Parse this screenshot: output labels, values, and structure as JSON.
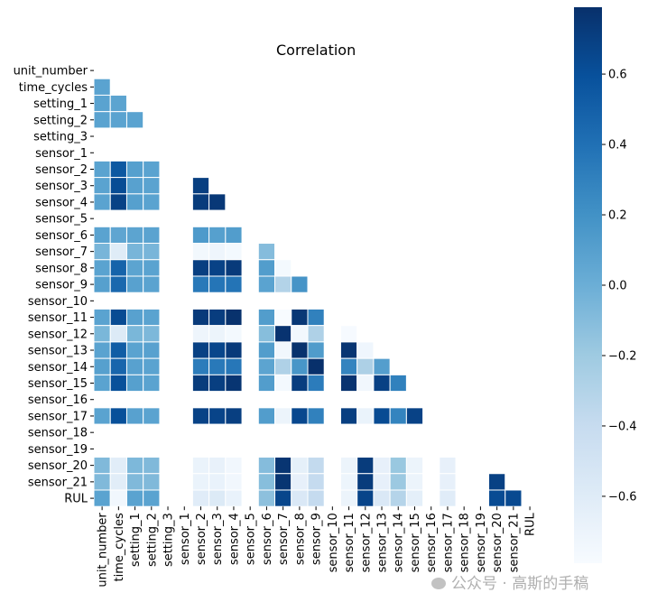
{
  "chart_data": {
    "type": "heatmap",
    "title": "Correlation",
    "labels": [
      "unit_number",
      "time_cycles",
      "setting_1",
      "setting_2",
      "setting_3",
      "sensor_1",
      "sensor_2",
      "sensor_3",
      "sensor_4",
      "sensor_5",
      "sensor_6",
      "sensor_7",
      "sensor_8",
      "sensor_9",
      "sensor_10",
      "sensor_11",
      "sensor_12",
      "sensor_13",
      "sensor_14",
      "sensor_15",
      "sensor_16",
      "sensor_17",
      "sensor_18",
      "sensor_19",
      "sensor_20",
      "sensor_21",
      "RUL"
    ],
    "mask": "upper-triangle",
    "constant_columns": [
      "setting_3",
      "sensor_1",
      "sensor_5",
      "sensor_10",
      "sensor_16",
      "sensor_18",
      "sensor_19"
    ],
    "lower_triangle_rows": [
      [],
      [
        0.08
      ],
      [
        0.08,
        0.07
      ],
      [
        0.08,
        0.08,
        0.08
      ],
      [],
      [],
      [
        0.08,
        0.55,
        0.1,
        0.08
      ],
      [
        0.08,
        0.62,
        0.09,
        0.08,
        null,
        null,
        0.7
      ],
      [
        0.08,
        0.68,
        0.1,
        0.08,
        null,
        null,
        0.72,
        0.74
      ],
      [],
      [
        0.08,
        0.06,
        0.07,
        0.08,
        null,
        null,
        0.14,
        0.1,
        0.12
      ],
      [
        -0.05,
        -0.6,
        -0.05,
        -0.05,
        null,
        null,
        -0.75,
        -0.72,
        -0.76,
        null,
        -0.1
      ],
      [
        0.08,
        0.48,
        0.07,
        0.08,
        null,
        null,
        0.7,
        0.68,
        0.73,
        null,
        0.12,
        -0.76
      ],
      [
        0.1,
        0.45,
        0.09,
        0.08,
        null,
        null,
        0.35,
        0.37,
        0.38,
        null,
        0.08,
        -0.3,
        0.18
      ],
      [],
      [
        0.08,
        0.63,
        0.09,
        0.08,
        null,
        null,
        0.73,
        0.71,
        0.78,
        null,
        0.12,
        -0.79,
        0.75,
        0.3
      ],
      [
        -0.06,
        -0.58,
        -0.06,
        -0.07,
        null,
        null,
        -0.72,
        -0.7,
        -0.76,
        null,
        -0.11,
        0.77,
        -0.75,
        -0.28,
        null,
        -0.78
      ],
      [
        0.08,
        0.52,
        0.08,
        0.09,
        null,
        null,
        0.69,
        0.66,
        0.73,
        null,
        0.12,
        -0.74,
        0.78,
        0.13,
        null,
        0.76,
        -0.73
      ],
      [
        0.1,
        0.47,
        0.09,
        0.08,
        null,
        null,
        0.33,
        0.35,
        0.36,
        null,
        0.07,
        -0.28,
        0.17,
        0.79,
        null,
        0.28,
        -0.27,
        0.11
      ],
      [
        0.08,
        0.6,
        0.1,
        0.08,
        null,
        null,
        0.72,
        0.7,
        0.76,
        null,
        0.12,
        -0.76,
        0.71,
        0.33,
        null,
        0.77,
        -0.74,
        0.69,
        0.3
      ],
      [],
      [
        0.08,
        0.6,
        0.09,
        0.08,
        null,
        null,
        0.68,
        0.67,
        0.7,
        null,
        0.12,
        -0.7,
        0.65,
        0.3,
        null,
        0.7,
        -0.69,
        0.63,
        0.28,
        0.68
      ],
      [],
      [],
      [
        -0.08,
        -0.62,
        -0.07,
        -0.08,
        null,
        null,
        -0.69,
        -0.67,
        -0.74,
        null,
        -0.1,
        0.76,
        -0.65,
        -0.38,
        null,
        -0.7,
        0.72,
        -0.66,
        -0.18,
        -0.7,
        null,
        -0.66
      ],
      [
        -0.08,
        -0.62,
        -0.08,
        -0.08,
        null,
        null,
        -0.69,
        -0.68,
        -0.74,
        null,
        -0.11,
        0.76,
        -0.66,
        -0.39,
        null,
        -0.71,
        0.72,
        -0.66,
        -0.19,
        -0.7,
        null,
        -0.66,
        null,
        null,
        0.69
      ],
      [
        0.08,
        -0.74,
        0.08,
        0.08,
        null,
        null,
        -0.61,
        -0.58,
        -0.68,
        null,
        -0.13,
        0.66,
        -0.56,
        -0.39,
        null,
        -0.7,
        0.67,
        -0.56,
        -0.31,
        -0.64,
        null,
        -0.61,
        null,
        null,
        0.63,
        0.64
      ]
    ],
    "colorbar": {
      "colormap": "Blues",
      "range": [
        -0.79,
        0.79
      ],
      "ticks": [
        0.6,
        0.4,
        0.2,
        0.0,
        -0.2,
        -0.4,
        -0.6
      ],
      "tick_labels": [
        "0.6",
        "0.4",
        "0.2",
        "0.0",
        "−0.2",
        "−0.4",
        "−0.6"
      ]
    }
  },
  "watermark": {
    "text": "公众号 · 高斯的手稿",
    "icon": "wechat-icon"
  }
}
